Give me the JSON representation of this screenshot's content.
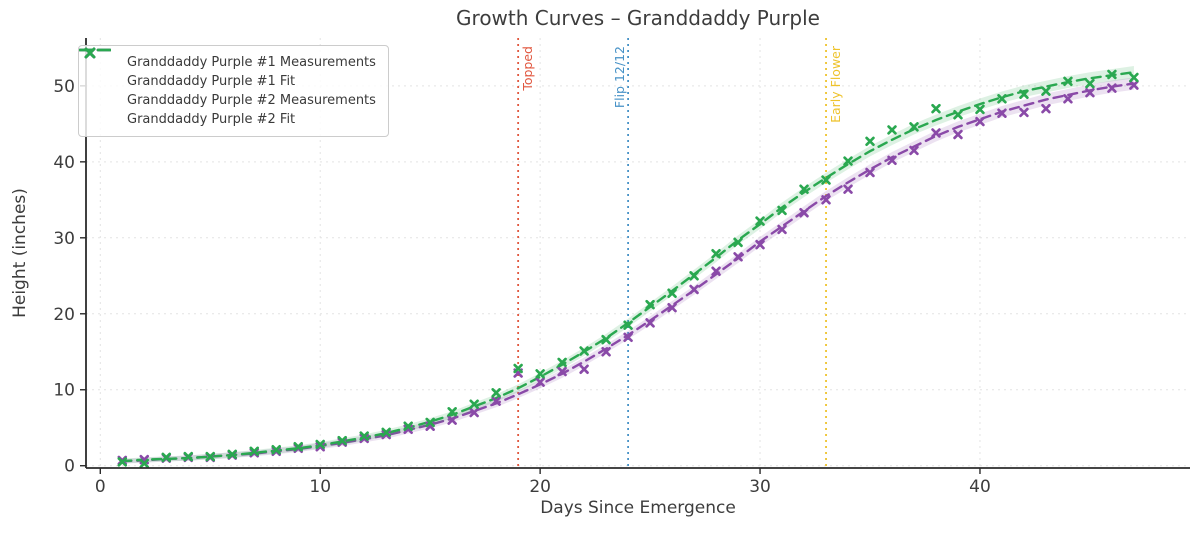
{
  "chart_data": {
    "type": "line",
    "title": "Growth Curves – Granddaddy Purple",
    "xlabel": "Days Since Emergence",
    "ylabel": "Height (inches)",
    "axes": {
      "xlim": [
        -0.65,
        49.55
      ],
      "ylim": [
        -0.3,
        56.3
      ],
      "x_ticks": [
        0,
        10,
        20,
        30,
        40
      ],
      "y_ticks": [
        0,
        10,
        20,
        30,
        40,
        50
      ],
      "grid": true,
      "legend_position": "upper-left"
    },
    "days": [
      1,
      2,
      3,
      4,
      5,
      6,
      7,
      8,
      9,
      10,
      11,
      12,
      13,
      14,
      15,
      16,
      17,
      18,
      19,
      20,
      21,
      22,
      23,
      24,
      25,
      26,
      27,
      28,
      29,
      30,
      31,
      32,
      33,
      34,
      35,
      36,
      37,
      38,
      39,
      40,
      41,
      42,
      43,
      44,
      45,
      46,
      47
    ],
    "series": [
      {
        "name": "Granddaddy Purple #1 Measurements",
        "type": "scatter",
        "marker": "x",
        "color": "#8a4aa8",
        "values": [
          0.7,
          0.8,
          1.0,
          1.1,
          1.1,
          1.4,
          1.7,
          1.9,
          2.3,
          2.5,
          3.1,
          3.6,
          4.1,
          4.8,
          5.2,
          6.0,
          7.0,
          8.5,
          12.2,
          11.0,
          12.4,
          12.7,
          15.0,
          16.9,
          18.8,
          20.8,
          23.2,
          25.6,
          27.5,
          29.1,
          31.1,
          33.3,
          35.0,
          36.4,
          38.6,
          40.2,
          41.5,
          43.8,
          43.6,
          45.3,
          46.4,
          46.5,
          47.0,
          48.3,
          49.1,
          49.7,
          50.1
        ]
      },
      {
        "name": "Granddaddy Purple #1 Fit",
        "type": "fit",
        "line_style": "dashed",
        "color": "#8a4aa8",
        "band": {
          "base": 0.3,
          "grow": 0.011
        },
        "values": [
          0.6,
          0.7,
          0.9,
          1.0,
          1.2,
          1.4,
          1.6,
          1.9,
          2.2,
          2.6,
          3.0,
          3.5,
          4.0,
          4.7,
          5.4,
          6.2,
          7.2,
          8.2,
          9.4,
          10.7,
          12.1,
          13.7,
          15.4,
          17.2,
          19.1,
          21.1,
          23.1,
          25.2,
          27.3,
          29.5,
          31.5,
          33.5,
          35.5,
          37.3,
          39.0,
          40.6,
          42.0,
          43.4,
          44.6,
          45.6,
          46.6,
          47.4,
          48.2,
          48.8,
          49.4,
          49.9,
          50.3
        ]
      },
      {
        "name": "Granddaddy Purple #2 Measurements",
        "type": "scatter",
        "marker": "x",
        "color": "#2aa850",
        "values": [
          0.5,
          0.3,
          1.1,
          1.2,
          1.2,
          1.5,
          1.9,
          2.1,
          2.5,
          2.8,
          3.3,
          3.9,
          4.4,
          5.2,
          5.7,
          7.1,
          8.1,
          9.6,
          12.8,
          12.1,
          13.6,
          15.1,
          16.6,
          18.5,
          21.2,
          22.7,
          25.0,
          27.9,
          29.4,
          32.2,
          33.6,
          36.4,
          37.6,
          40.1,
          42.7,
          44.2,
          44.6,
          47.0,
          46.2,
          46.9,
          48.3,
          48.9,
          49.3,
          50.6,
          50.3,
          51.5,
          51.1
        ]
      },
      {
        "name": "Granddaddy Purple #2 Fit",
        "type": "fit",
        "line_style": "dashed",
        "color": "#2aa850",
        "band": {
          "base": 0.3,
          "grow": 0.011
        },
        "values": [
          0.6,
          0.8,
          0.9,
          1.0,
          1.2,
          1.4,
          1.7,
          2.0,
          2.3,
          2.7,
          3.2,
          3.7,
          4.3,
          5.0,
          5.8,
          6.7,
          7.8,
          8.9,
          10.2,
          11.7,
          13.3,
          15.0,
          16.8,
          18.8,
          20.9,
          23.0,
          25.2,
          27.4,
          29.7,
          31.8,
          34.0,
          36.0,
          37.9,
          39.7,
          41.4,
          42.9,
          44.3,
          45.5,
          46.6,
          47.6,
          48.5,
          49.3,
          49.9,
          50.5,
          51.0,
          51.4,
          51.8
        ]
      }
    ],
    "events": [
      {
        "label": "Topped",
        "day": 19,
        "color": "#e1573f",
        "label_side": "right"
      },
      {
        "label": "Flip 12/12",
        "day": 24,
        "color": "#4792c7",
        "label_side": "left"
      },
      {
        "label": "Early Flower",
        "day": 33,
        "color": "#eec32d",
        "label_side": "right"
      }
    ],
    "style": {
      "grid_color": "#e3e3e3",
      "spine_color": "#2b2b2b",
      "tick_label_color": "#3d3d3d"
    }
  }
}
